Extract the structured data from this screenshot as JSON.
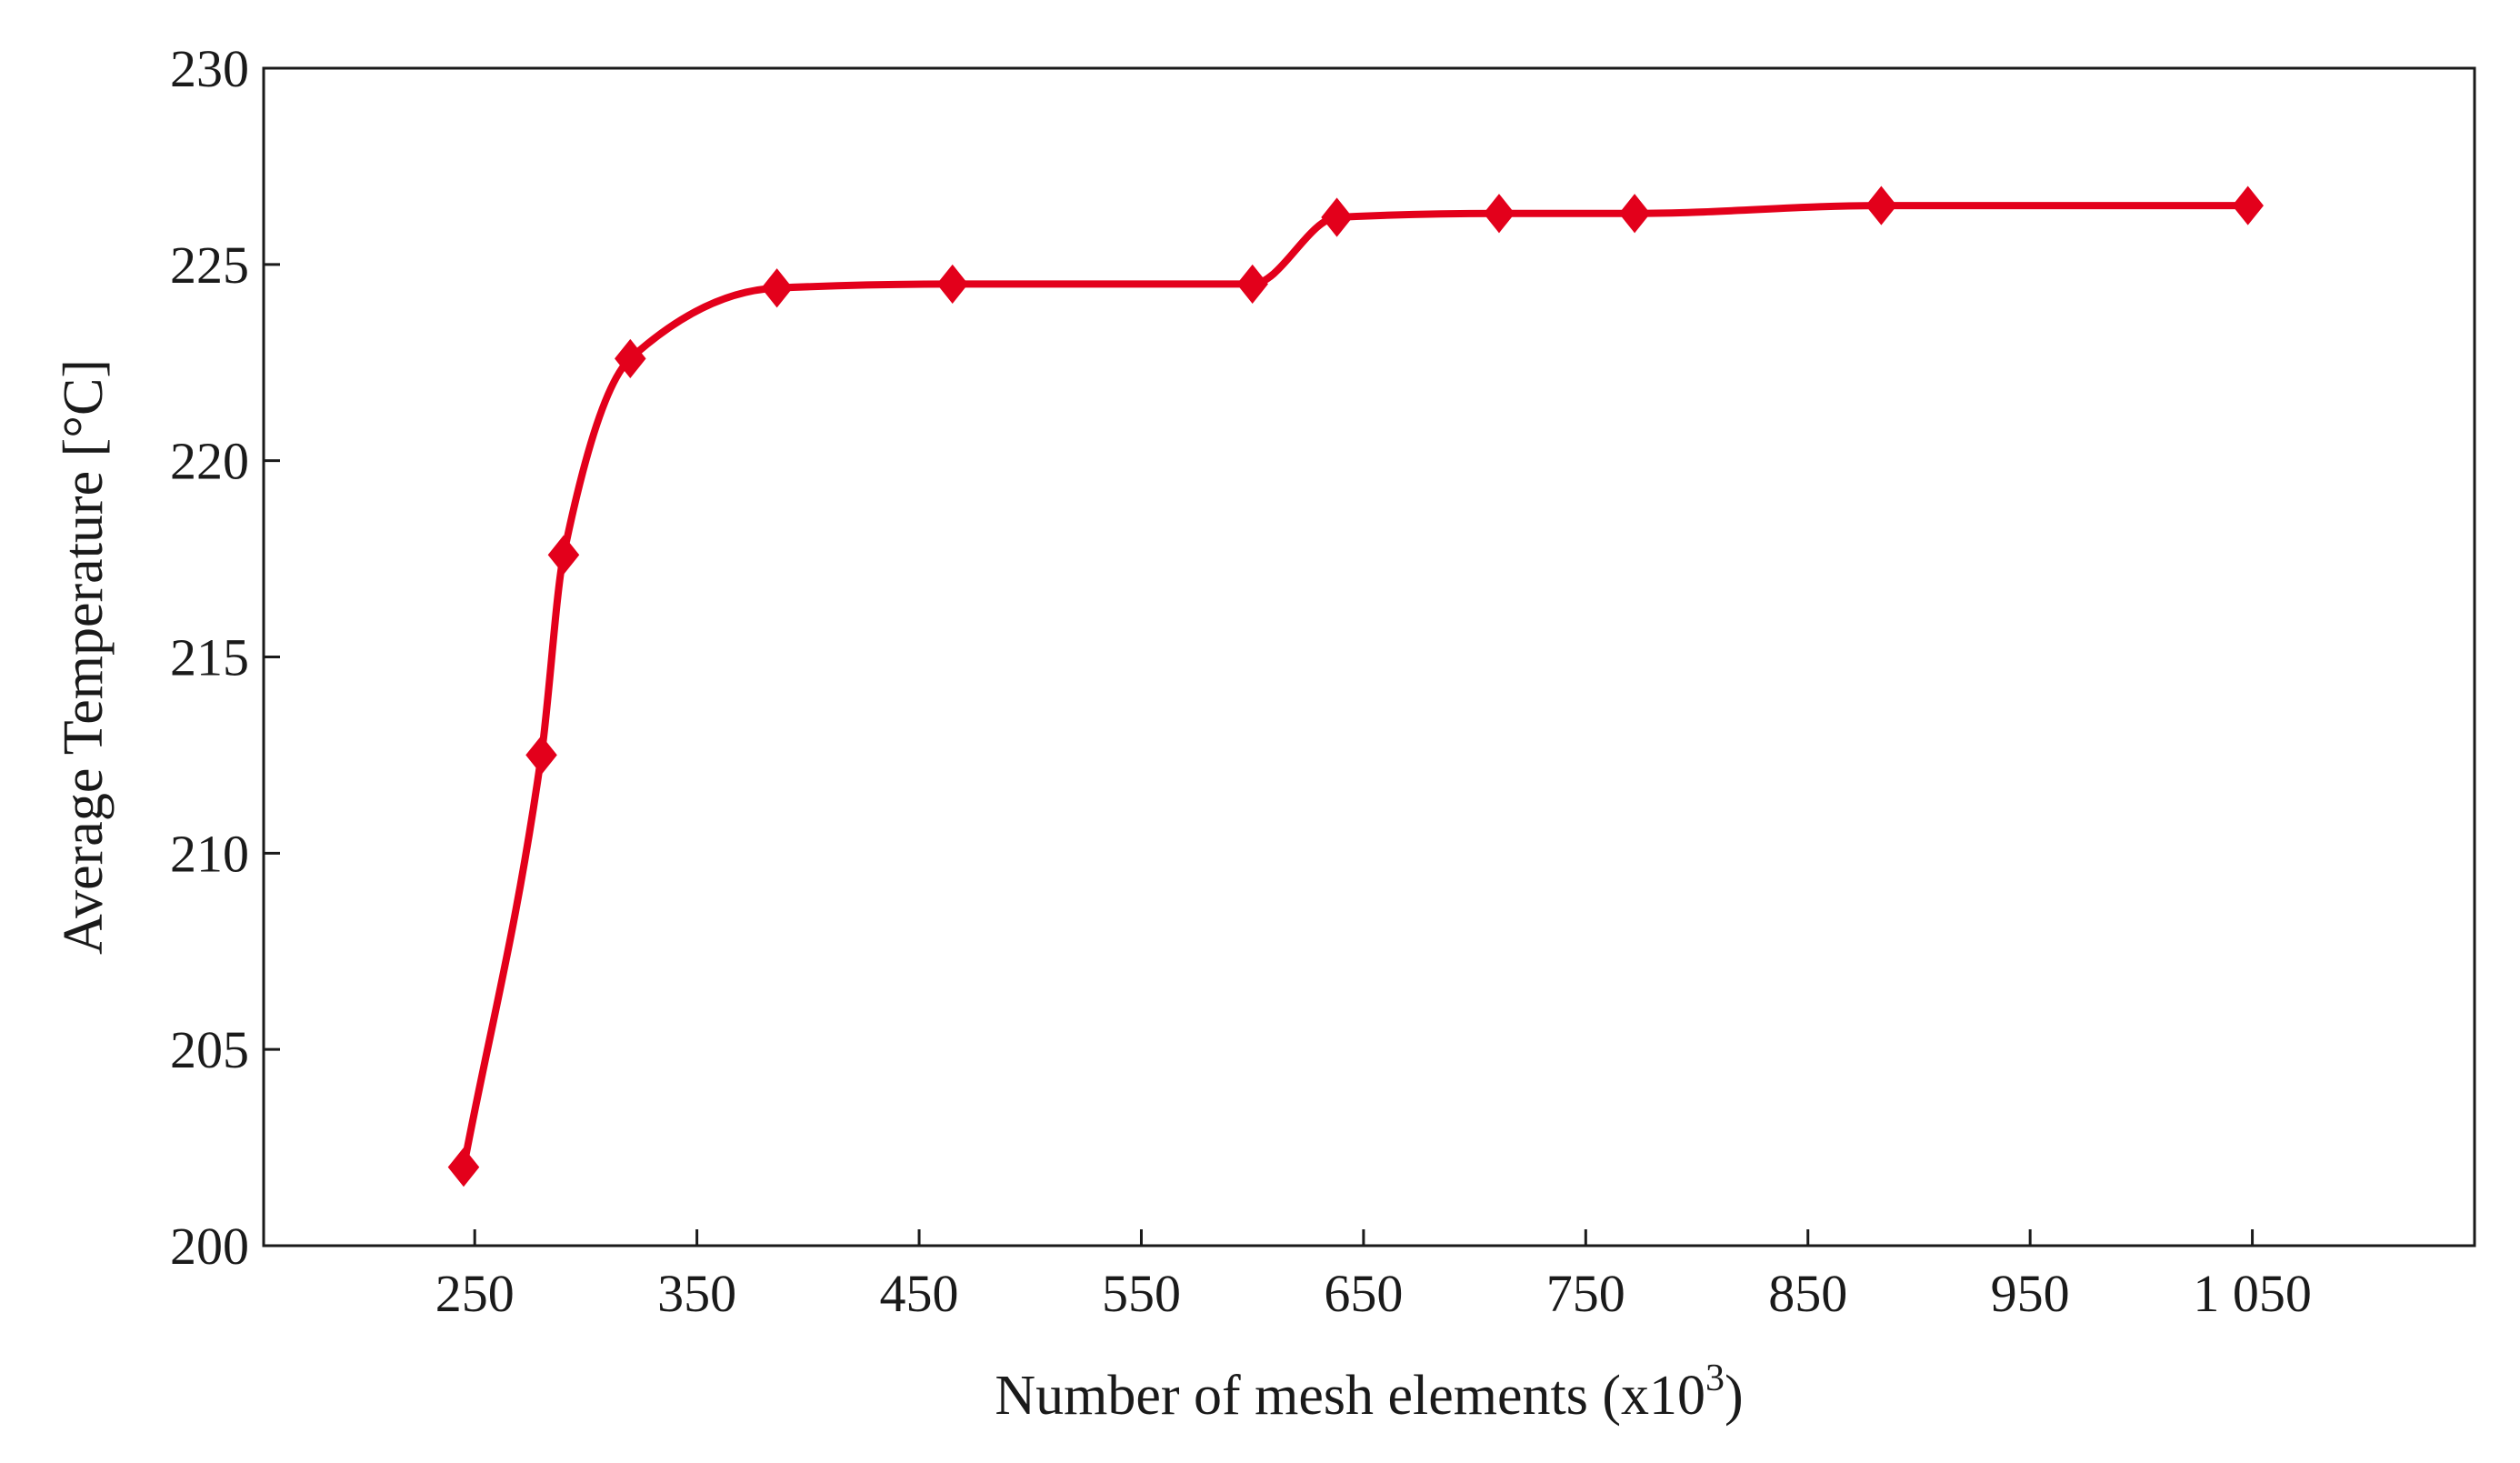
{
  "chart_data": {
    "type": "line",
    "title": "",
    "xlabel": "Number of mesh elements (x10",
    "xlabel_superscript": "3",
    "xlabel_suffix": ")",
    "ylabel": "Average Temperature [°C]",
    "xlim": [
      155,
      1150
    ],
    "ylim": [
      200,
      230
    ],
    "x_ticks": [
      250,
      350,
      450,
      550,
      650,
      750,
      850,
      950,
      1050
    ],
    "x_tick_labels": [
      "250",
      "350",
      "450",
      "550",
      "650",
      "750",
      "850",
      "950",
      "1 050"
    ],
    "y_ticks": [
      200,
      205,
      210,
      215,
      220,
      225,
      230
    ],
    "y_tick_labels": [
      "200",
      "205",
      "210",
      "215",
      "220",
      "225",
      "230"
    ],
    "grid": false,
    "legend": "none",
    "series": [
      {
        "color": "#e3001b",
        "marker": "diamond",
        "x": [
          245,
          280,
          290,
          320,
          386,
          465,
          600,
          638,
          711,
          772,
          883,
          1048
        ],
        "y": [
          202.0,
          212.5,
          217.6,
          222.6,
          224.4,
          224.5,
          224.5,
          226.2,
          226.3,
          226.3,
          226.5,
          226.5
        ]
      }
    ]
  }
}
